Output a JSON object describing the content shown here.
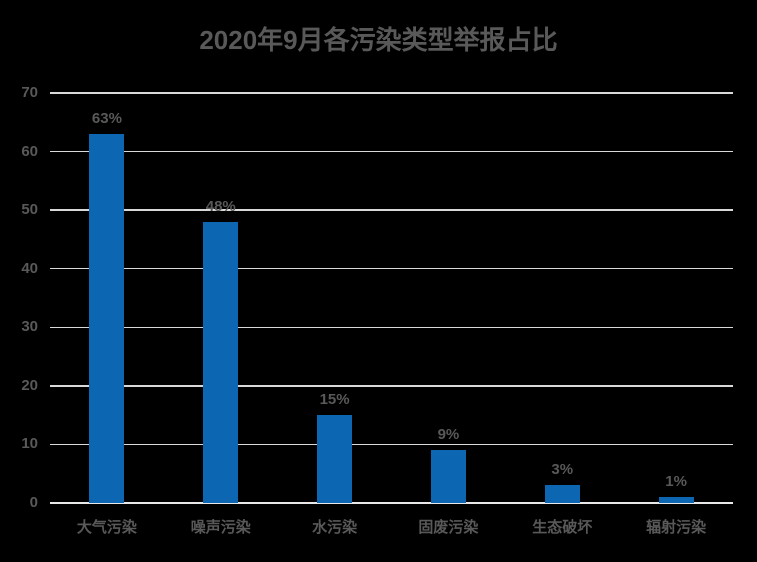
{
  "colors": {
    "background": "#000000",
    "bar": "#0d66b2",
    "text": "#595959",
    "gridline": "#d9d9d9"
  },
  "chart_data": {
    "type": "bar",
    "title": "2020年9月各污染类型举报占比",
    "categories": [
      "大气污染",
      "噪声污染",
      "水污染",
      "固废污染",
      "生态破坏",
      "辐射污染"
    ],
    "values": [
      63,
      48,
      15,
      9,
      3,
      1
    ],
    "value_labels": [
      "63%",
      "48%",
      "15%",
      "9%",
      "3%",
      "1%"
    ],
    "xlabel": "",
    "ylabel": "",
    "yticks": [
      0,
      10,
      20,
      30,
      40,
      50,
      60,
      70
    ],
    "ylim": [
      0,
      70
    ],
    "grid": true,
    "legend": false,
    "unit": "%"
  }
}
